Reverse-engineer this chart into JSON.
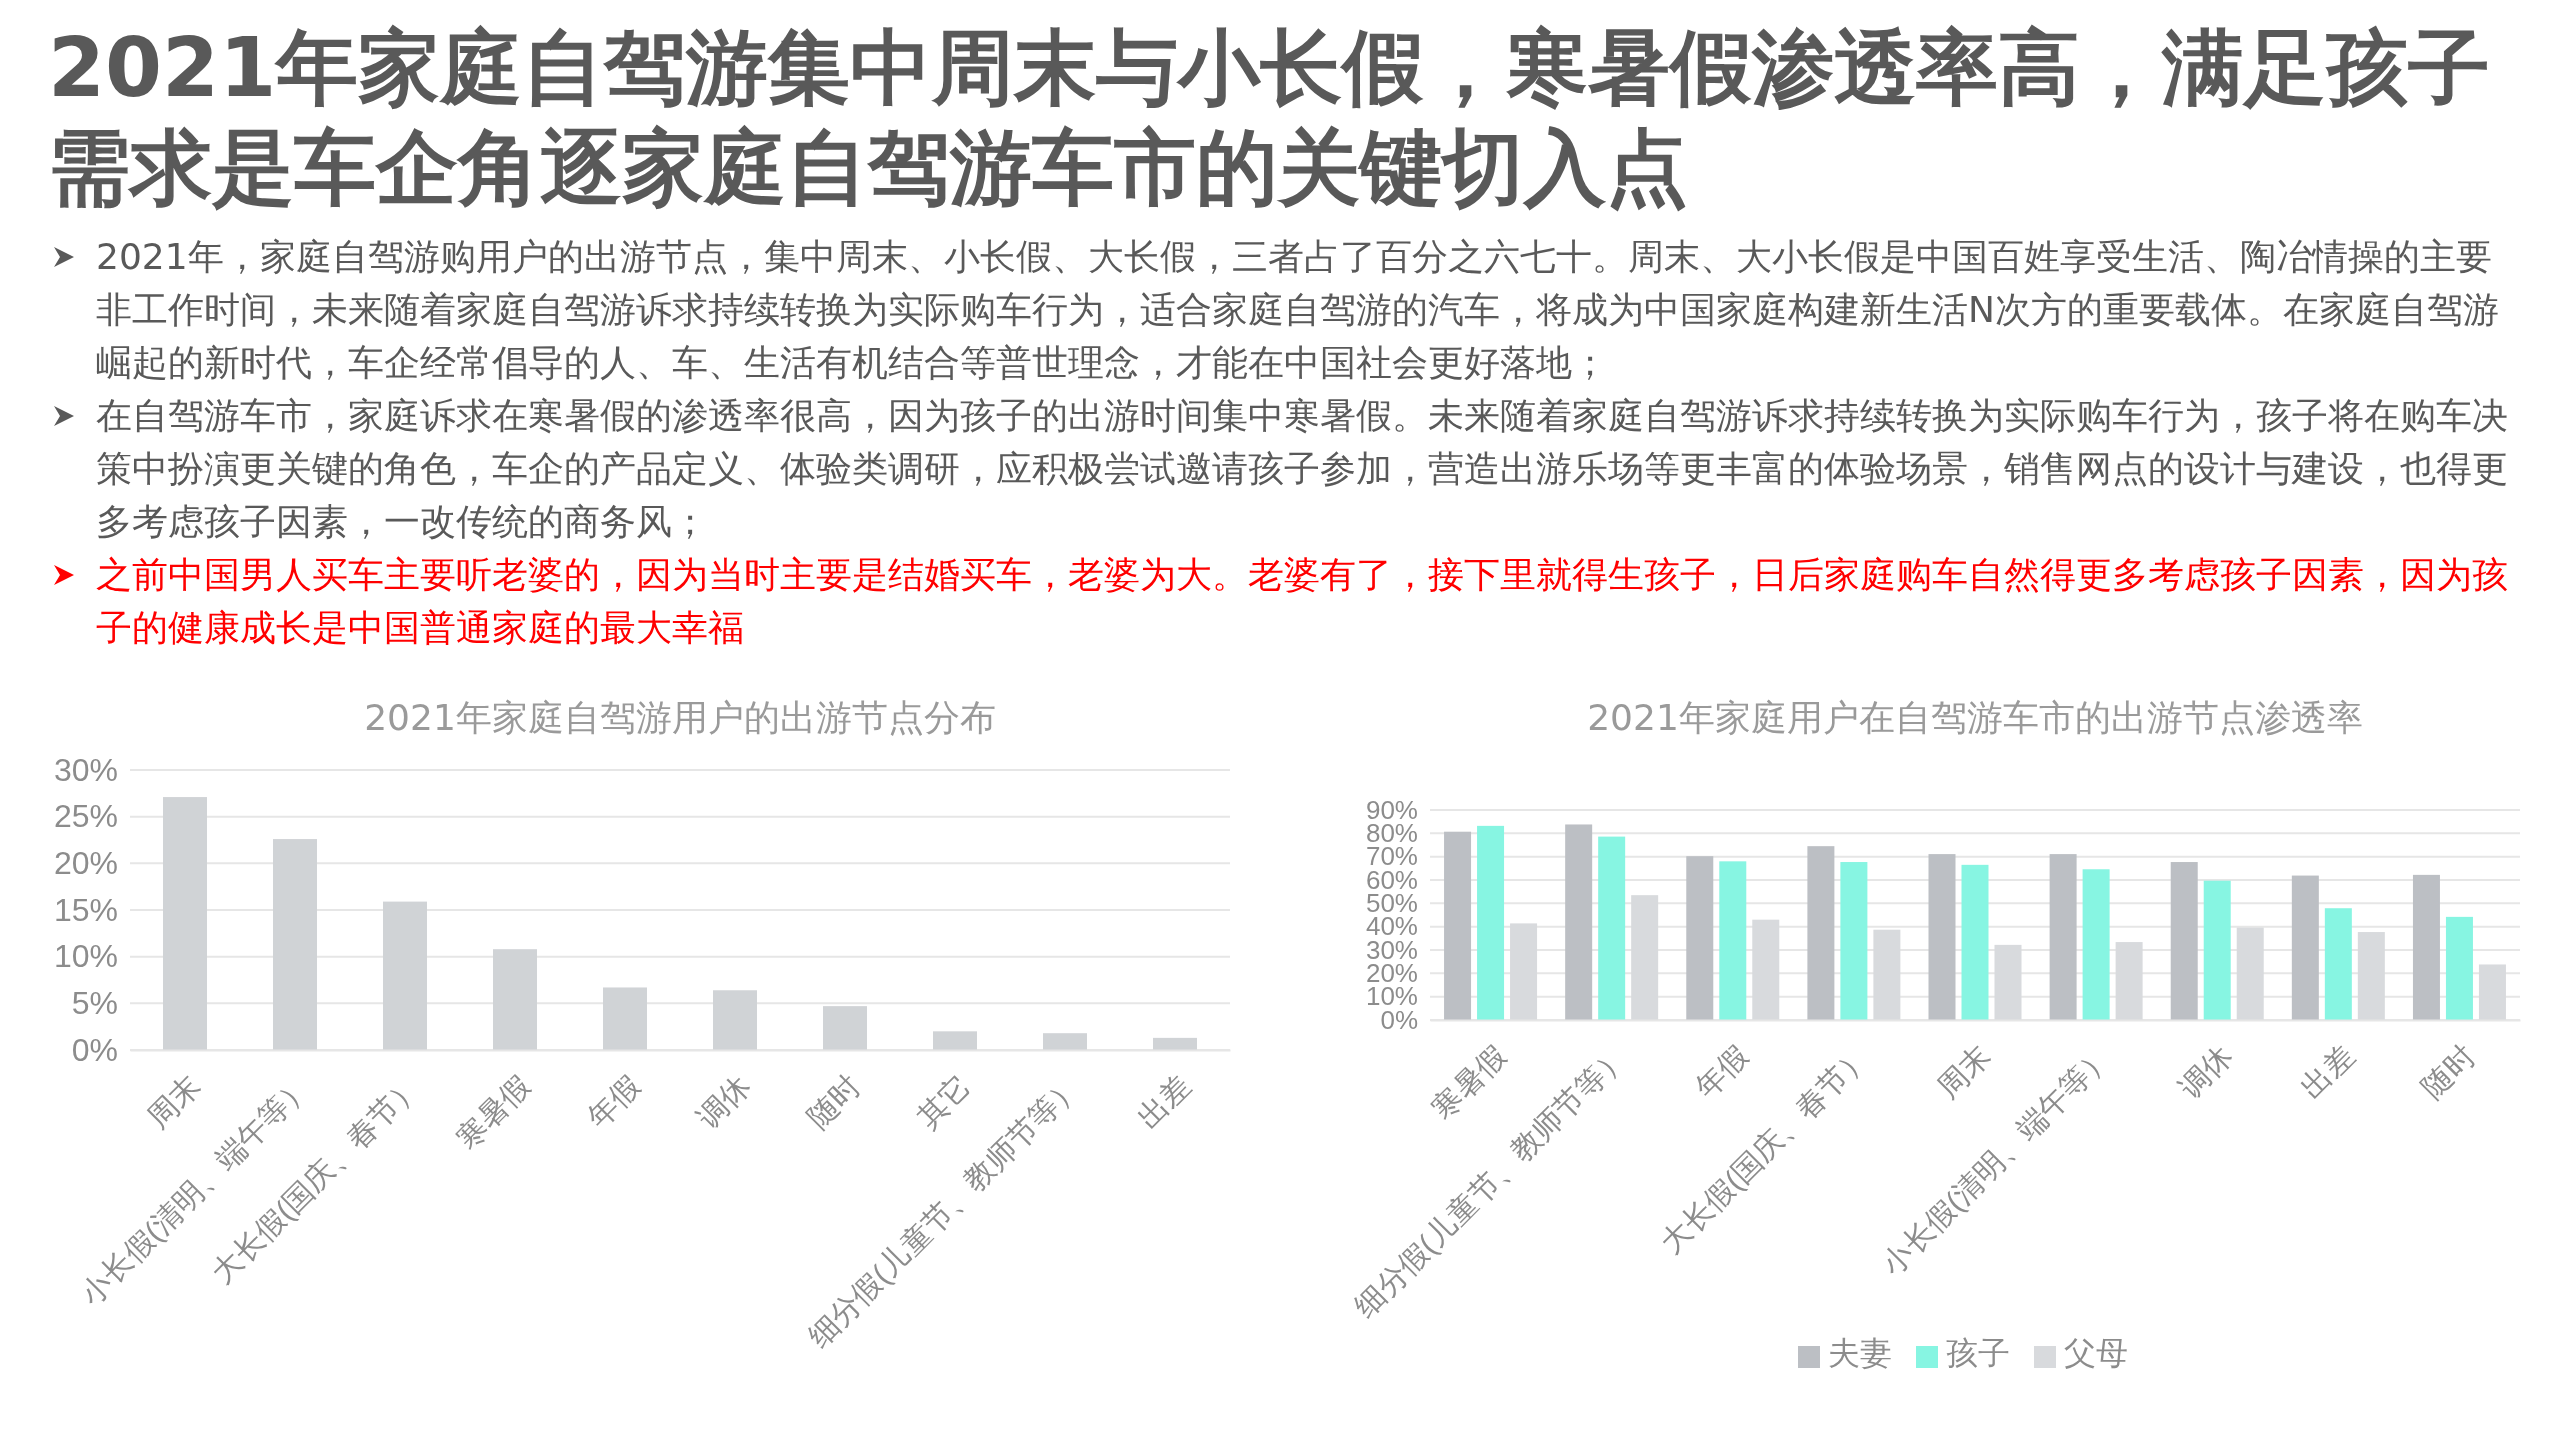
{
  "chart_data": [
    {
      "type": "other",
      "title": "2021年家庭自驾游集中周末与小长假，寒暑假渗透率高，满足孩子需求是车企角逐家庭自驾游车市的关键切入点",
      "annotations": [
        "2021年，家庭自驾游购用户的出游节点，集中周末、小长假、大长假，三者占了百分之六七十。周末、大小长假是中国百姓享受生活、陶冶情操的主要非工作时间，未来随着家庭自驾游诉求持续转换为实际购车行为，适合家庭自驾游的汽车，将成为中国家庭构建新生活N次方的重要载体。在家庭自驾游崛起的新时代，车企经常倡导的人、车、生活有机结合等普世理念，才能在中国社会更好落地；",
        "在自驾游车市，家庭诉求在寒暑假的渗透率很高，因为孩子的出游时间集中寒暑假。未来随着家庭自驾游诉求持续转换为实际购车行为，孩子将在购车决策中扮演更关键的角色，车企的产品定义、体验类调研，应积极尝试邀请孩子参加，营造出游乐场等更丰富的体验场景，销售网点的设计与建设，也得更多考虑孩子因素，一改传统的商务风；",
        "之前中国男人买车主要听老婆的，因为当时主要是结婚买车，老婆为大。老婆有了，接下里就得生孩子，日后家庭购车自然得更多考虑孩子因素，因为孩子的健康成长是中国普通家庭的最大幸福"
      ]
    },
    {
      "type": "bar",
      "title": "2021年家庭自驾游用户的出游节点分布",
      "categories": [
        "周末",
        "小长假(清明、端午等）",
        "大长假(国庆、春节）",
        "寒暑假",
        "年假",
        "调休",
        "随时",
        "其它",
        "细分假(儿童节、教师节等）",
        "出差"
      ],
      "values": [
        27.1,
        22.6,
        15.9,
        10.8,
        6.7,
        6.4,
        4.7,
        2.0,
        1.8,
        1.3
      ],
      "color": "#d0d3d6",
      "ylim": [
        0,
        30
      ],
      "yticks": [
        {
          "value": 0,
          "label": "0%"
        },
        {
          "value": 5,
          "label": "5%"
        },
        {
          "value": 10,
          "label": "10%"
        },
        {
          "value": 15,
          "label": "15%"
        },
        {
          "value": 20,
          "label": "20%"
        },
        {
          "value": 25,
          "label": "25%"
        },
        {
          "value": 30,
          "label": "30%"
        }
      ],
      "grid": "y",
      "legend": false
    },
    {
      "type": "bar",
      "title": "2021年家庭用户在自驾游车市的出游节点渗透率",
      "categories": [
        "寒暑假",
        "细分假(儿童节、教师节等）",
        "年假",
        "大长假(国庆、春节）",
        "周末",
        "小长假(清明、端午等）",
        "调休",
        "出差",
        "随时"
      ],
      "series": [
        {
          "name": "夫妻",
          "color": "#bcbfc4",
          "values": [
            80.7,
            83.8,
            70.2,
            74.5,
            71.1,
            71.1,
            67.7,
            61.9,
            62.2
          ]
        },
        {
          "name": "孩子",
          "color": "#87f5e2",
          "values": [
            83.2,
            78.6,
            68.0,
            67.7,
            66.5,
            64.6,
            59.7,
            47.9,
            44.2
          ]
        },
        {
          "name": "父母",
          "color": "#d8dadd",
          "values": [
            41.4,
            53.5,
            43.0,
            38.7,
            32.2,
            33.4,
            39.6,
            37.7,
            23.8
          ]
        }
      ],
      "ylim": [
        0,
        90
      ],
      "yticks": [
        {
          "value": 0,
          "label": "0%"
        },
        {
          "value": 10,
          "label": "10%"
        },
        {
          "value": 20,
          "label": "20%"
        },
        {
          "value": 30,
          "label": "30%"
        },
        {
          "value": 40,
          "label": "40%"
        },
        {
          "value": 50,
          "label": "50%"
        },
        {
          "value": 60,
          "label": "60%"
        },
        {
          "value": 70,
          "label": "70%"
        },
        {
          "value": 80,
          "label": "80%"
        },
        {
          "value": 90,
          "label": "90%"
        }
      ],
      "grid": "y",
      "legend": "bottom"
    }
  ]
}
